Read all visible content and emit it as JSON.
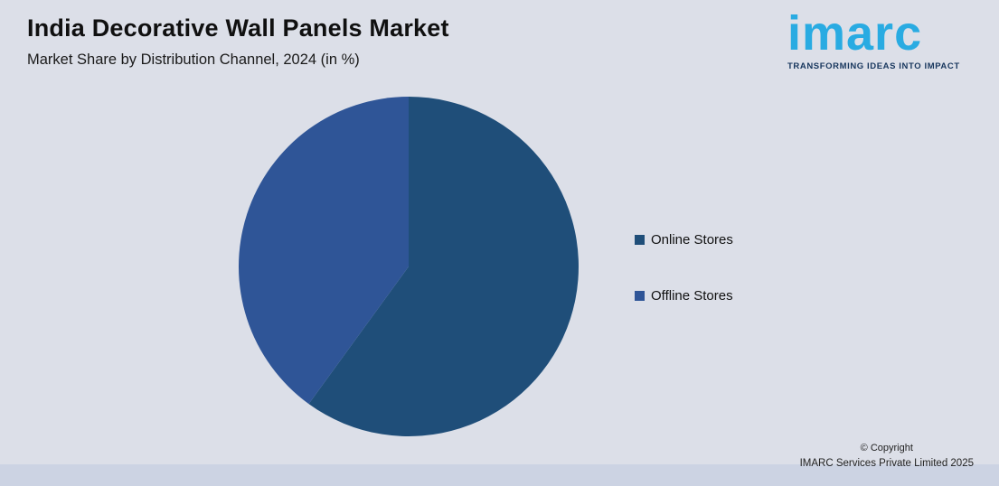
{
  "header": {
    "title": "India Decorative Wall Panels Market",
    "subtitle": "Market Share by Distribution Channel, 2024 (in %)"
  },
  "logo": {
    "word": "imarc",
    "tagline": "TRANSFORMING IDEAS INTO IMPACT",
    "word_color": "#29abe2",
    "tagline_color": "#17365d"
  },
  "chart_data": {
    "type": "pie",
    "title": "India Decorative Wall Panels Market",
    "subtitle": "Market Share by Distribution Channel, 2024 (in %)",
    "labels": [
      "Online Stores",
      "Offline Stores"
    ],
    "values": [
      60,
      40
    ],
    "colors": [
      "#1f4e79",
      "#2f5597"
    ],
    "start_angle_deg": 0,
    "direction": "clockwise",
    "legend_position": "right",
    "data_labels_shown": false
  },
  "legend": {
    "items": [
      {
        "label": "Online Stores",
        "color": "#1f4e79"
      },
      {
        "label": "Offline Stores",
        "color": "#2f5597"
      }
    ]
  },
  "footer": {
    "line1": "© Copyright",
    "line2": "IMARC Services Private Limited 2025"
  },
  "colors": {
    "background": "#dcdfe8",
    "bottom_band": "#ccd3e3"
  }
}
